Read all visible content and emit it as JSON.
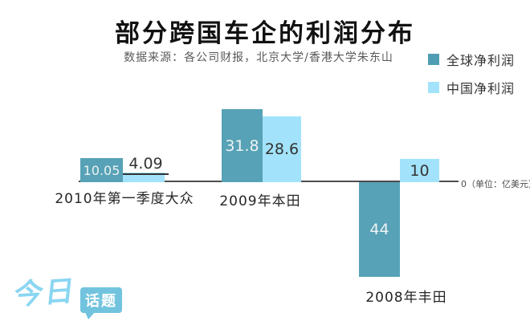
{
  "title": "部分跨国车企的利润分布",
  "subtitle": "数据来源：各公司财报，北京大学/香港大学朱东山",
  "legend": [
    {
      "label": "全球净利润",
      "color": "#4f9db3"
    },
    {
      "label": "中国净利润",
      "color": "#a2e3fb"
    }
  ],
  "axis_zero_label": "0（单位：亿美元）",
  "logo": {
    "script_text": "今日",
    "bubble_text": "话题"
  },
  "chart_data": {
    "type": "bar",
    "title": "部分跨国车企的利润分布",
    "unit": "亿美元",
    "categories": [
      "2010年第一季度大众",
      "2009年本田",
      "2008年丰田"
    ],
    "series": [
      {
        "name": "全球净利润",
        "color": "#57a2b6",
        "values": [
          10.05,
          31.8,
          -44
        ]
      },
      {
        "name": "中国净利润",
        "color": "#a2e3fb",
        "values": [
          4.09,
          28.6,
          10
        ]
      }
    ],
    "value_labels": [
      [
        "10.05",
        "4.09"
      ],
      [
        "31.8",
        "28.6"
      ],
      [
        "44",
        "10"
      ]
    ],
    "baseline": 0,
    "grid": "off",
    "legend_position": "top-right"
  }
}
